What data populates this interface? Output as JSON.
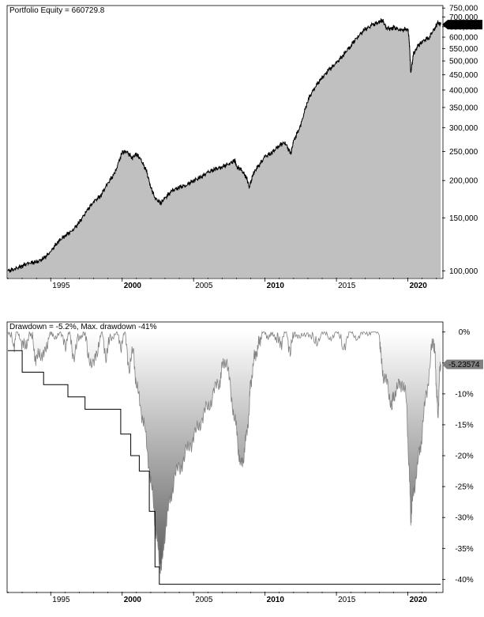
{
  "chart_data": [
    {
      "type": "area",
      "title": "Portfolio Equity = 660729.8",
      "y_scale": "log",
      "ylim": [
        95000,
        760000
      ],
      "xlim": [
        1992.0,
        2022.4
      ],
      "y_ticks": [
        "750,000",
        "700,000",
        "650,000",
        "600,000",
        "550,000",
        "500,000",
        "450,000",
        "400,000",
        "350,000",
        "300,000",
        "250,000",
        "200,000",
        "150,000",
        "100,000"
      ],
      "y_tick_values": [
        750000,
        700000,
        650000,
        600000,
        550000,
        500000,
        450000,
        400000,
        350000,
        300000,
        250000,
        200000,
        150000,
        100000
      ],
      "x_ticks": [
        "1995",
        "2000",
        "2005",
        "2010",
        "2015",
        "2020"
      ],
      "x_tick_values": [
        1995,
        2000,
        2005,
        2010,
        2015,
        2020
      ],
      "x_ticks_bold": [
        "2000",
        "2010",
        "2020"
      ],
      "last_value_label": "660,730",
      "last_value": 660730,
      "colors": {
        "fill": "#c0c0c0",
        "line": "#000000",
        "marker": "#000000"
      },
      "series": [
        {
          "x": [
            1992.0,
            1992.5,
            1993.0,
            1993.5,
            1994.0,
            1994.5,
            1995.0,
            1995.5,
            1996.0,
            1996.5,
            1997.0,
            1997.5,
            1998.0,
            1998.5,
            1999.0,
            1999.5,
            2000.0,
            2000.3,
            2000.7,
            2001.0,
            2001.3,
            2001.7,
            2002.0,
            2002.3,
            2002.7,
            2003.0,
            2003.5,
            2004.0,
            2004.5,
            2005.0,
            2005.5,
            2006.0,
            2006.5,
            2007.0,
            2007.5,
            2007.9,
            2008.0,
            2008.3,
            2008.7,
            2008.9,
            2009.2,
            2009.5,
            2010.0,
            2010.5,
            2011.0,
            2011.4,
            2011.8,
            2012.0,
            2012.5,
            2013.0,
            2013.5,
            2014.0,
            2014.5,
            2015.0,
            2015.5,
            2016.0,
            2016.5,
            2017.0,
            2017.5,
            2018.0,
            2018.2,
            2018.5,
            2018.9,
            2019.0,
            2019.5,
            2020.0,
            2020.1,
            2020.2,
            2020.4,
            2020.7,
            2021.0,
            2021.5,
            2021.9,
            2022.1,
            2022.3
          ],
          "y": [
            100000,
            101500,
            104000,
            106500,
            107000,
            110000,
            116000,
            125000,
            131000,
            136000,
            145000,
            158000,
            170000,
            178000,
            196000,
            212000,
            248000,
            250000,
            238000,
            245000,
            235000,
            215000,
            190000,
            175000,
            168000,
            175000,
            185000,
            190000,
            193000,
            200000,
            205000,
            213000,
            218000,
            222000,
            228000,
            233000,
            222000,
            218000,
            205000,
            190000,
            212000,
            222000,
            240000,
            248000,
            262000,
            268000,
            245000,
            270000,
            305000,
            370000,
            410000,
            440000,
            468000,
            492000,
            525000,
            562000,
            603000,
            636000,
            658000,
            675000,
            685000,
            645000,
            638000,
            648000,
            632000,
            640000,
            582000,
            455000,
            528000,
            560000,
            580000,
            600000,
            645000,
            670000,
            660730
          ]
        }
      ]
    },
    {
      "type": "area",
      "title": "Drawdown = -5.2%, Max. drawdown -41%",
      "ylim": [
        -42,
        1.5
      ],
      "xlim": [
        1992.0,
        2022.4
      ],
      "y_ticks": [
        "0%",
        "-5%",
        "-10%",
        "-15%",
        "-20%",
        "-25%",
        "-30%",
        "-35%",
        "-40%"
      ],
      "y_tick_values": [
        0,
        -5,
        -10,
        -15,
        -20,
        -25,
        -30,
        -35,
        -40
      ],
      "x_ticks": [
        "1995",
        "2000",
        "2005",
        "2010",
        "2015",
        "2020"
      ],
      "x_tick_values": [
        1995,
        2000,
        2005,
        2010,
        2015,
        2020
      ],
      "x_ticks_bold": [
        "2000",
        "2010",
        "2020"
      ],
      "last_value_label": "-5.23574",
      "last_value": -5.23574,
      "colors": {
        "fill_top": "#ffffff",
        "fill_bottom": "#5a5a5a",
        "line": "#808080",
        "max_line": "#000000",
        "marker": "#808080"
      },
      "series": [
        {
          "name": "Drawdown",
          "x": [
            1992.0,
            1992.4,
            1992.6,
            1992.9,
            1993.2,
            1993.5,
            1993.8,
            1994.0,
            1994.3,
            1994.6,
            1994.9,
            1995.2,
            1995.6,
            1996.0,
            1996.3,
            1996.6,
            1997.0,
            1997.3,
            1997.6,
            1998.0,
            1998.3,
            1998.6,
            1998.9,
            1999.2,
            1999.6,
            1999.9,
            2000.2,
            2000.5,
            2000.8,
            2001.0,
            2001.3,
            2001.6,
            2001.9,
            2002.2,
            2002.4,
            2002.6,
            2002.8,
            2003.0,
            2003.3,
            2003.6,
            2004.0,
            2004.4,
            2004.8,
            2005.2,
            2005.6,
            2006.0,
            2006.4,
            2006.8,
            2007.0,
            2007.3,
            2007.6,
            2007.9,
            2008.1,
            2008.3,
            2008.5,
            2008.7,
            2008.9,
            2009.0,
            2009.2,
            2009.4,
            2009.6,
            2009.8,
            2010.0,
            2010.3,
            2010.6,
            2010.9,
            2011.2,
            2011.5,
            2011.8,
            2012.1,
            2012.5,
            2013.0,
            2013.5,
            2014.0,
            2014.5,
            2015.0,
            2015.5,
            2016.0,
            2016.5,
            2017.0,
            2017.5,
            2018.0,
            2018.1,
            2018.3,
            2018.6,
            2018.9,
            2019.0,
            2019.3,
            2019.6,
            2019.9,
            2020.1,
            2020.2,
            2020.3,
            2020.5,
            2020.8,
            2021.0,
            2021.3,
            2021.6,
            2021.8,
            2021.9,
            2022.0,
            2022.1,
            2022.2,
            2022.3
          ],
          "y": [
            0,
            -2,
            0,
            -1,
            -3,
            0,
            -2,
            -5,
            -3,
            -4,
            0,
            -1,
            0,
            -2,
            0,
            -4,
            -1,
            0,
            -3,
            -6,
            -2,
            0,
            -4,
            -1,
            0,
            -2,
            0,
            -6,
            -3,
            -9,
            -12,
            -16,
            -22,
            -28,
            -33,
            -37,
            -38,
            -32,
            -28,
            -24,
            -22,
            -20,
            -18,
            -16,
            -14,
            -12,
            -10,
            -8,
            -6,
            -4,
            -10,
            -14,
            -18,
            -22,
            -20,
            -17,
            -12,
            -8,
            -5,
            -3,
            -2,
            0,
            0,
            -1,
            0,
            -2,
            -1,
            0,
            -3,
            0,
            -1,
            0,
            -2,
            0,
            -1,
            0,
            -2,
            0,
            -1,
            0,
            0,
            0,
            -4,
            -7,
            -9,
            -12,
            -10,
            -9,
            -8,
            -11,
            -23,
            -30,
            -28,
            -24,
            -20,
            -16,
            -10,
            -4,
            -1,
            -4,
            -9,
            -14,
            -8,
            -5.24
          ]
        },
        {
          "name": "Max drawdown",
          "x": [
            1992.0,
            1993.0,
            1993.0,
            1994.5,
            1994.5,
            1996.2,
            1996.2,
            1997.4,
            1997.4,
            1998.6,
            1998.6,
            1999.9,
            1999.9,
            2000.6,
            2000.6,
            2001.2,
            2001.2,
            2001.9,
            2001.9,
            2002.3,
            2002.3,
            2002.6,
            2002.6,
            2022.3
          ],
          "y": [
            -3,
            -3,
            -6.5,
            -6.5,
            -8.5,
            -8.5,
            -10.5,
            -10.5,
            -12.5,
            -12.5,
            -12.5,
            -12.5,
            -16.5,
            -16.5,
            -20,
            -20,
            -22.5,
            -22.5,
            -29,
            -29,
            -38,
            -38,
            -40.8,
            -40.8
          ]
        }
      ]
    }
  ]
}
